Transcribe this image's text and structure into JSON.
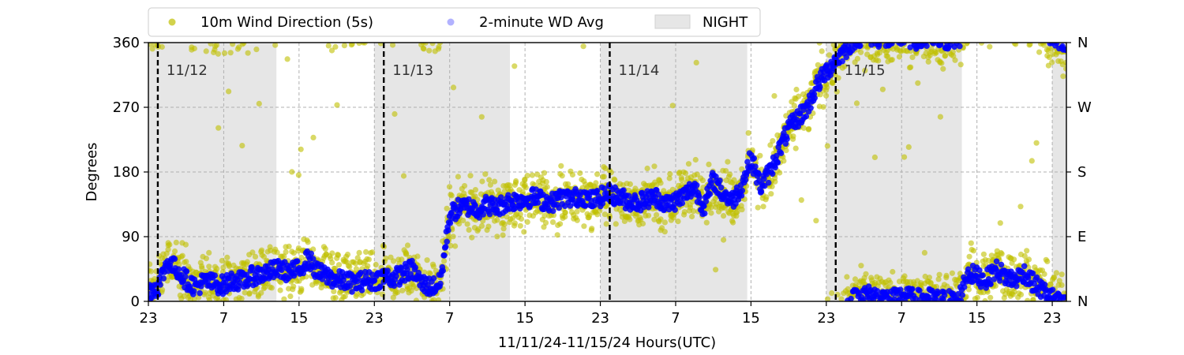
{
  "chart_data": {
    "type": "scatter",
    "xlabel": "11/11/24-11/15/24  Hours(UTC)",
    "ylabel": "Degrees",
    "xlim": [
      -1,
      96.5
    ],
    "ylim": [
      0,
      360
    ],
    "x_tick_values": [
      -1,
      7,
      15,
      23,
      31,
      39,
      47,
      55,
      63,
      71,
      79,
      87,
      95
    ],
    "x_tick_labels": [
      "23",
      "7",
      "15",
      "23",
      "7",
      "15",
      "23",
      "7",
      "15",
      "23",
      "7",
      "15",
      "23"
    ],
    "y_ticks": [
      0,
      90,
      180,
      270,
      360
    ],
    "y_tick_labels": [
      "0",
      "90",
      "180",
      "270",
      "360"
    ],
    "y2_ticks": [
      0,
      90,
      180,
      270,
      360
    ],
    "y2_tick_labels": [
      "N",
      "E",
      "S",
      "W",
      "N"
    ],
    "grid": true,
    "legend": {
      "placement": "top-center-outside",
      "entries": [
        {
          "label": "10m Wind Direction (5s)",
          "color": "#bfbf00"
        },
        {
          "label": "2-minute WD Avg",
          "color": "#0000ff"
        },
        {
          "label": "NIGHT",
          "color": "#e6e6e6"
        }
      ]
    },
    "night_spans": [
      [
        -1,
        12.6
      ],
      [
        23,
        37.4
      ],
      [
        47,
        62.6
      ],
      [
        71,
        85.4
      ],
      [
        95,
        96.5
      ]
    ],
    "day_markers": [
      {
        "x": 0,
        "label": "11/12"
      },
      {
        "x": 24,
        "label": "11/13"
      },
      {
        "x": 48,
        "label": "11/14"
      },
      {
        "x": 72,
        "label": "11/15"
      }
    ],
    "series": [
      {
        "name": "2-minute WD Avg",
        "color": "#0000ff",
        "points": [
          [
            -1,
            15
          ],
          [
            0,
            20
          ],
          [
            1,
            55
          ],
          [
            2,
            45
          ],
          [
            3,
            30
          ],
          [
            4,
            20
          ],
          [
            5,
            28
          ],
          [
            6,
            25
          ],
          [
            7,
            22
          ],
          [
            8,
            30
          ],
          [
            9,
            28
          ],
          [
            10,
            35
          ],
          [
            11,
            38
          ],
          [
            12,
            42
          ],
          [
            13,
            45
          ],
          [
            14,
            40
          ],
          [
            15,
            45
          ],
          [
            16,
            60
          ],
          [
            17,
            40
          ],
          [
            18,
            35
          ],
          [
            19,
            30
          ],
          [
            20,
            28
          ],
          [
            21,
            25
          ],
          [
            22,
            30
          ],
          [
            23,
            28
          ],
          [
            24,
            35
          ],
          [
            25,
            32
          ],
          [
            26,
            38
          ],
          [
            27,
            45
          ],
          [
            28,
            25
          ],
          [
            29,
            20
          ],
          [
            30,
            25
          ],
          [
            31,
            120
          ],
          [
            32,
            130
          ],
          [
            33,
            132
          ],
          [
            34,
            128
          ],
          [
            35,
            135
          ],
          [
            36,
            130
          ],
          [
            37,
            138
          ],
          [
            38,
            140
          ],
          [
            39,
            142
          ],
          [
            40,
            145
          ],
          [
            41,
            140
          ],
          [
            42,
            138
          ],
          [
            43,
            145
          ],
          [
            44,
            142
          ],
          [
            45,
            148
          ],
          [
            46,
            140
          ],
          [
            47,
            145
          ],
          [
            48,
            150
          ],
          [
            49,
            145
          ],
          [
            50,
            140
          ],
          [
            51,
            138
          ],
          [
            52,
            142
          ],
          [
            53,
            145
          ],
          [
            54,
            135
          ],
          [
            55,
            140
          ],
          [
            56,
            148
          ],
          [
            57,
            160
          ],
          [
            58,
            130
          ],
          [
            59,
            170
          ],
          [
            60,
            150
          ],
          [
            61,
            140
          ],
          [
            62,
            160
          ],
          [
            63,
            200
          ],
          [
            64,
            160
          ],
          [
            65,
            180
          ],
          [
            66,
            210
          ],
          [
            67,
            240
          ],
          [
            68,
            255
          ],
          [
            69,
            270
          ],
          [
            70,
            300
          ],
          [
            71,
            320
          ],
          [
            72,
            335
          ],
          [
            73,
            350
          ],
          [
            74,
            5
          ],
          [
            75,
            10
          ],
          [
            76,
            8
          ],
          [
            77,
            5
          ],
          [
            78,
            3
          ],
          [
            79,
            8
          ],
          [
            80,
            5
          ],
          [
            81,
            3
          ],
          [
            82,
            5
          ],
          [
            83,
            2
          ],
          [
            84,
            3
          ],
          [
            85,
            0
          ],
          [
            86,
            40
          ],
          [
            87,
            35
          ],
          [
            88,
            30
          ],
          [
            89,
            45
          ],
          [
            90,
            35
          ],
          [
            91,
            30
          ],
          [
            92,
            40
          ],
          [
            93,
            25
          ],
          [
            94,
            15
          ],
          [
            95,
            5
          ],
          [
            96,
            355
          ]
        ]
      }
    ]
  }
}
